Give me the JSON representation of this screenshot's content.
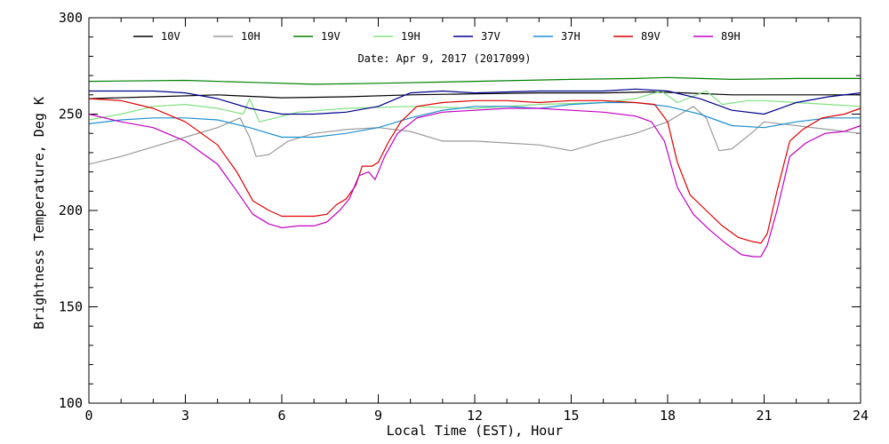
{
  "chart_data": {
    "type": "line",
    "annotation": "Date: Apr  9, 2017 (2017099)",
    "xlabel": "Local Time (EST), Hour",
    "ylabel": "Brightness Temperature, Deg K",
    "xlim": [
      0,
      24
    ],
    "ylim": [
      100,
      300
    ],
    "x_ticks": [
      0,
      3,
      6,
      9,
      12,
      15,
      18,
      21,
      24
    ],
    "y_ticks": [
      100,
      150,
      200,
      250,
      300
    ],
    "grid": false,
    "legend_position": "top",
    "series": [
      {
        "name": "10V",
        "color": "#000000",
        "points": [
          [
            0,
            258
          ],
          [
            2,
            259
          ],
          [
            4,
            260
          ],
          [
            6,
            258.5
          ],
          [
            8,
            259
          ],
          [
            10,
            260
          ],
          [
            12,
            260.5
          ],
          [
            14,
            261
          ],
          [
            16,
            261
          ],
          [
            17.5,
            261.5
          ],
          [
            18.5,
            261
          ],
          [
            20,
            260
          ],
          [
            22,
            260
          ],
          [
            24,
            260
          ]
        ]
      },
      {
        "name": "10H",
        "color": "#9a9a9a",
        "points": [
          [
            0,
            224
          ],
          [
            1,
            228
          ],
          [
            2,
            233
          ],
          [
            3,
            238
          ],
          [
            4,
            243
          ],
          [
            4.7,
            248
          ],
          [
            5.0,
            238
          ],
          [
            5.2,
            228
          ],
          [
            5.6,
            229
          ],
          [
            6.2,
            236
          ],
          [
            7,
            240
          ],
          [
            8,
            242
          ],
          [
            9,
            243
          ],
          [
            10,
            241
          ],
          [
            11,
            236
          ],
          [
            12,
            236
          ],
          [
            13,
            235
          ],
          [
            14,
            234
          ],
          [
            15,
            231
          ],
          [
            16,
            236
          ],
          [
            17,
            240
          ],
          [
            18,
            246
          ],
          [
            18.8,
            254
          ],
          [
            19.2,
            248
          ],
          [
            19.6,
            231
          ],
          [
            20.0,
            232
          ],
          [
            20.6,
            240
          ],
          [
            21,
            246
          ],
          [
            22,
            244
          ],
          [
            23,
            242
          ],
          [
            24,
            240
          ]
        ]
      },
      {
        "name": "19V",
        "color": "#008000",
        "points": [
          [
            0,
            267
          ],
          [
            3,
            267.5
          ],
          [
            5,
            266.5
          ],
          [
            7,
            265.5
          ],
          [
            9,
            266
          ],
          [
            12,
            267
          ],
          [
            15,
            268
          ],
          [
            17,
            268.5
          ],
          [
            18,
            269
          ],
          [
            20,
            268
          ],
          [
            22,
            268.5
          ],
          [
            24,
            268.5
          ]
        ]
      },
      {
        "name": "19H",
        "color": "#80e080",
        "points": [
          [
            0,
            247
          ],
          [
            1,
            250
          ],
          [
            2,
            254
          ],
          [
            3,
            255
          ],
          [
            4,
            253
          ],
          [
            4.8,
            250
          ],
          [
            5.0,
            258
          ],
          [
            5.3,
            246
          ],
          [
            5.8,
            248
          ],
          [
            6.5,
            251
          ],
          [
            8,
            253
          ],
          [
            10,
            254
          ],
          [
            12,
            253
          ],
          [
            14,
            255
          ],
          [
            16,
            256
          ],
          [
            17,
            258
          ],
          [
            17.8,
            262
          ],
          [
            18.3,
            256
          ],
          [
            19.2,
            262
          ],
          [
            19.7,
            255
          ],
          [
            20.5,
            257
          ],
          [
            21,
            257
          ],
          [
            22,
            256
          ],
          [
            23,
            255
          ],
          [
            24,
            254
          ]
        ]
      },
      {
        "name": "37V",
        "color": "#00008b",
        "points": [
          [
            0,
            262
          ],
          [
            2,
            262
          ],
          [
            3,
            261
          ],
          [
            4,
            258
          ],
          [
            5,
            253
          ],
          [
            6,
            250
          ],
          [
            7,
            250
          ],
          [
            8,
            251
          ],
          [
            9,
            254
          ],
          [
            10,
            261
          ],
          [
            11,
            262
          ],
          [
            12,
            261
          ],
          [
            14,
            262
          ],
          [
            16,
            262
          ],
          [
            17,
            263
          ],
          [
            18,
            262
          ],
          [
            19,
            258
          ],
          [
            20,
            252
          ],
          [
            21,
            250
          ],
          [
            22,
            256
          ],
          [
            23,
            259
          ],
          [
            24,
            261
          ]
        ]
      },
      {
        "name": "37H",
        "color": "#1e90d0",
        "points": [
          [
            0,
            245
          ],
          [
            1,
            247
          ],
          [
            2,
            248
          ],
          [
            3,
            248
          ],
          [
            4,
            247
          ],
          [
            5,
            243
          ],
          [
            6,
            238
          ],
          [
            7,
            238
          ],
          [
            8,
            240
          ],
          [
            9,
            243
          ],
          [
            10,
            248
          ],
          [
            11,
            252
          ],
          [
            12,
            254
          ],
          [
            13,
            254
          ],
          [
            14,
            253
          ],
          [
            15,
            255
          ],
          [
            16,
            256
          ],
          [
            17,
            256
          ],
          [
            18,
            254
          ],
          [
            19,
            250
          ],
          [
            20,
            244
          ],
          [
            21,
            243
          ],
          [
            22,
            246
          ],
          [
            23,
            248
          ],
          [
            24,
            248
          ]
        ]
      },
      {
        "name": "89V",
        "color": "#e00000",
        "points": [
          [
            0,
            258
          ],
          [
            1,
            257
          ],
          [
            2,
            253
          ],
          [
            3,
            246
          ],
          [
            4,
            234
          ],
          [
            4.6,
            220
          ],
          [
            5.1,
            205
          ],
          [
            5.6,
            200
          ],
          [
            6.0,
            197
          ],
          [
            6.5,
            197
          ],
          [
            7.0,
            197
          ],
          [
            7.4,
            198
          ],
          [
            7.7,
            203
          ],
          [
            8.0,
            206
          ],
          [
            8.3,
            213
          ],
          [
            8.5,
            223
          ],
          [
            8.8,
            223
          ],
          [
            9.0,
            225
          ],
          [
            9.3,
            235
          ],
          [
            9.7,
            246
          ],
          [
            10.2,
            254
          ],
          [
            11,
            256
          ],
          [
            12,
            257
          ],
          [
            13,
            257
          ],
          [
            14,
            256
          ],
          [
            15,
            257
          ],
          [
            16,
            257
          ],
          [
            17,
            256
          ],
          [
            17.6,
            255
          ],
          [
            18.0,
            246
          ],
          [
            18.3,
            225
          ],
          [
            18.7,
            208
          ],
          [
            19.2,
            200
          ],
          [
            19.7,
            192
          ],
          [
            20.2,
            186
          ],
          [
            20.6,
            184
          ],
          [
            20.9,
            183
          ],
          [
            21.1,
            188
          ],
          [
            21.4,
            210
          ],
          [
            21.8,
            236
          ],
          [
            22.2,
            242
          ],
          [
            22.8,
            248
          ],
          [
            23.5,
            250
          ],
          [
            24,
            253
          ]
        ]
      },
      {
        "name": "89H",
        "color": "#c000c0",
        "points": [
          [
            0,
            250
          ],
          [
            1,
            246
          ],
          [
            2,
            243
          ],
          [
            3,
            236
          ],
          [
            4,
            224
          ],
          [
            4.6,
            210
          ],
          [
            5.1,
            198
          ],
          [
            5.6,
            193
          ],
          [
            6.0,
            191
          ],
          [
            6.5,
            192
          ],
          [
            7.0,
            192
          ],
          [
            7.4,
            194
          ],
          [
            7.8,
            200
          ],
          [
            8.1,
            206
          ],
          [
            8.4,
            218
          ],
          [
            8.7,
            220
          ],
          [
            8.9,
            216
          ],
          [
            9.2,
            228
          ],
          [
            9.6,
            240
          ],
          [
            10.2,
            248
          ],
          [
            11,
            251
          ],
          [
            12,
            252
          ],
          [
            13,
            253
          ],
          [
            14,
            253
          ],
          [
            15,
            252
          ],
          [
            16,
            251
          ],
          [
            17,
            249
          ],
          [
            17.5,
            246
          ],
          [
            17.9,
            236
          ],
          [
            18.3,
            212
          ],
          [
            18.8,
            198
          ],
          [
            19.3,
            190
          ],
          [
            19.8,
            183
          ],
          [
            20.3,
            177
          ],
          [
            20.7,
            176
          ],
          [
            20.9,
            176
          ],
          [
            21.1,
            182
          ],
          [
            21.4,
            200
          ],
          [
            21.8,
            228
          ],
          [
            22.3,
            235
          ],
          [
            22.9,
            240
          ],
          [
            23.5,
            241
          ],
          [
            24,
            244
          ]
        ]
      }
    ]
  }
}
